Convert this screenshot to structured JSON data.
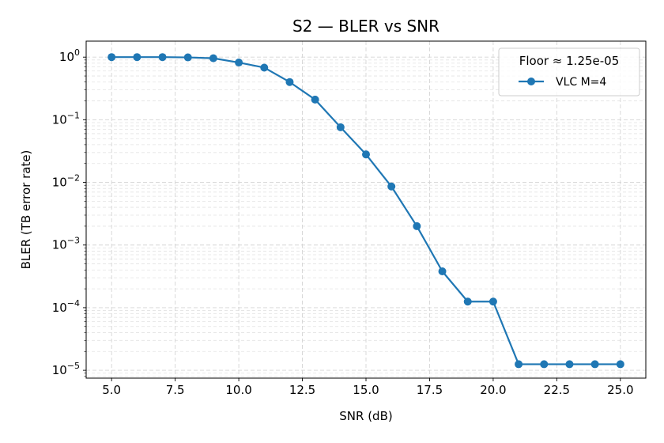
{
  "chart_data": {
    "type": "line",
    "title": "S2 — BLER vs SNR",
    "xlabel": "SNR (dB)",
    "ylabel": "BLER (TB error rate)",
    "xlim": [
      4.0,
      26.0
    ],
    "ylim": [
      7.5e-06,
      1.8
    ],
    "yscale": "log",
    "grid": true,
    "x_ticks": [
      "5.0",
      "7.5",
      "10.0",
      "12.5",
      "15.0",
      "17.5",
      "20.0",
      "22.5",
      "25.0"
    ],
    "y_ticks": [
      {
        "base": "10",
        "exp": "0"
      },
      {
        "base": "10",
        "exp": "−1"
      },
      {
        "base": "10",
        "exp": "−2"
      },
      {
        "base": "10",
        "exp": "−3"
      },
      {
        "base": "10",
        "exp": "−4"
      },
      {
        "base": "10",
        "exp": "−5"
      }
    ],
    "legend": {
      "position": "top-right",
      "title": "Floor ≈ 1.25e-05"
    },
    "series": [
      {
        "name": "VLC M=4",
        "color": "#1f77b4",
        "marker": "circle",
        "x": [
          5,
          6,
          7,
          8,
          9,
          10,
          11,
          12,
          13,
          14,
          15,
          16,
          17,
          18,
          19,
          20,
          21,
          22,
          23,
          24,
          25
        ],
        "y": [
          1.0,
          1.0,
          1.0,
          0.99,
          0.96,
          0.82,
          0.68,
          0.4,
          0.21,
          0.076,
          0.028,
          0.0086,
          0.002,
          0.00038,
          0.000125,
          0.000125,
          1.25e-05,
          1.25e-05,
          1.25e-05,
          1.25e-05,
          1.25e-05
        ]
      }
    ]
  }
}
